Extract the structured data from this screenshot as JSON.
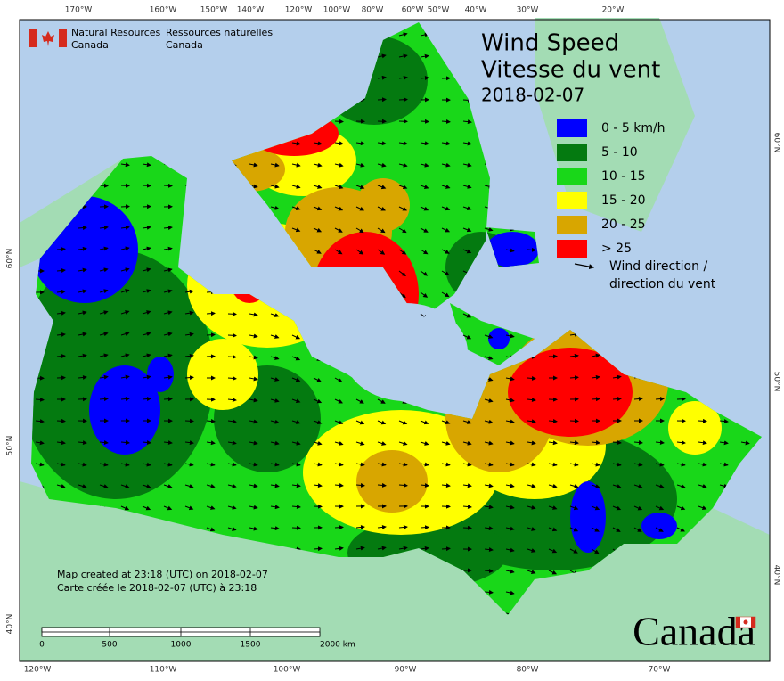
{
  "header": {
    "agency_en": [
      "Natural Resources",
      "Canada"
    ],
    "agency_fr": [
      "Ressources naturelles",
      "Canada"
    ]
  },
  "title": {
    "line1": "Wind Speed",
    "line2": "Vitesse du vent",
    "date": "2018-02-07"
  },
  "legend": {
    "items": [
      {
        "label": "0 - 5 km/h",
        "color": "#0000ff"
      },
      {
        "label": "5 - 10",
        "color": "#047a10"
      },
      {
        "label": "10 - 15",
        "color": "#19d719"
      },
      {
        "label": "15 - 20",
        "color": "#ffff00"
      },
      {
        "label": "20 - 25",
        "color": "#d8a600"
      },
      {
        "label": "> 25",
        "color": "#ff0000"
      }
    ],
    "direction_label": [
      "Wind direction /",
      "direction du vent"
    ]
  },
  "graticule": {
    "top": [
      "170°W",
      "160°W",
      "150°W",
      "140°W",
      "120°W",
      "100°W",
      "80°W",
      "60°W",
      "50°W",
      "40°W",
      "30°W",
      "20°W"
    ],
    "bottom": [
      "120°W",
      "110°W",
      "100°W",
      "90°W",
      "80°W",
      "70°W"
    ],
    "left": [
      "60°N",
      "50°N",
      "40°N"
    ],
    "right": [
      "60°N",
      "50°N",
      "40°N"
    ]
  },
  "footer": {
    "created": [
      "Map created at 23:18 (UTC) on 2018-02-07",
      "Carte créée le 2018-02-07 (UTC) à 23:18"
    ]
  },
  "scale_bar": {
    "labels": [
      "0",
      "500",
      "1000",
      "1500",
      "2000 km"
    ]
  },
  "wordmark": "Canada"
}
